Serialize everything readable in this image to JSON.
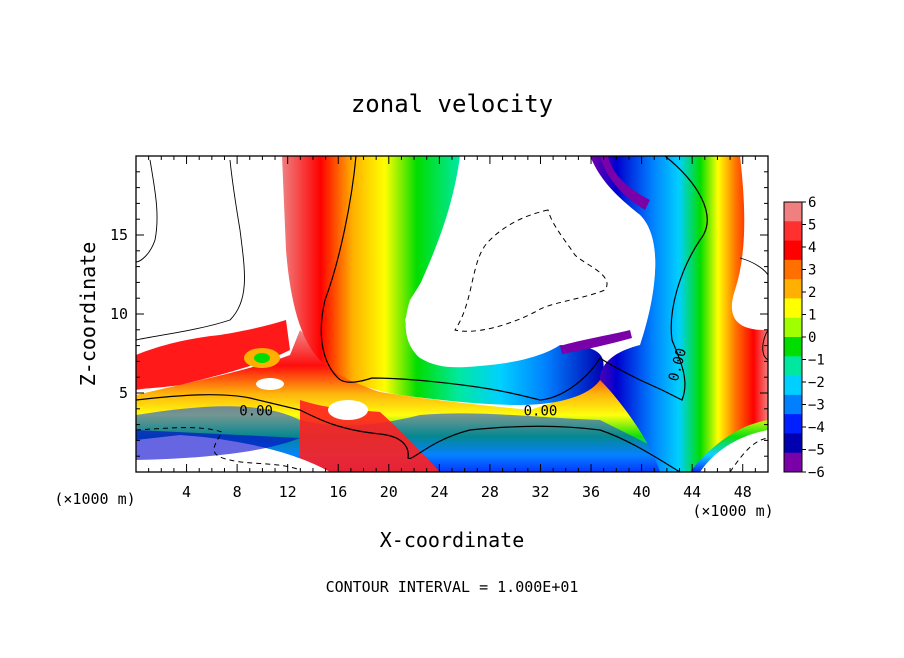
{
  "chart_data": {
    "type": "heatmap",
    "title": "zonal velocity",
    "xlabel": "X-coordinate",
    "ylabel": "Z-coordinate",
    "x_unit_note": "(×1000 m)",
    "z_unit_note": "(×1000 m)",
    "xlim": [
      0,
      50
    ],
    "ylim": [
      0,
      20
    ],
    "x_ticks": [
      4,
      8,
      12,
      16,
      20,
      24,
      28,
      32,
      36,
      40,
      44,
      48
    ],
    "y_ticks": [
      5,
      10,
      15
    ],
    "footer": "CONTOUR INTERVAL = 1.000E+01",
    "colorbar": {
      "min": -6,
      "max": 6,
      "tick_labels": [
        "6",
        "5",
        "4",
        "3",
        "2",
        "1",
        "0",
        "−1",
        "−2",
        "−3",
        "−4",
        "−5",
        "−6"
      ],
      "colors": [
        "#f08080",
        "#ff3030",
        "#ff0000",
        "#ff7000",
        "#ffb000",
        "#ffff00",
        "#a0ff00",
        "#00dd00",
        "#00e8a0",
        "#00d0ff",
        "#0080ff",
        "#0020ff",
        "#0000b0",
        "#7a00a8"
      ]
    },
    "contour_labels": [
      {
        "text": "0.00",
        "x": 9.5,
        "z": 3.9
      },
      {
        "text": "0.00",
        "x": 32.0,
        "z": 3.9
      },
      {
        "text": "0.00",
        "x": 42.8,
        "z": 6.8
      }
    ]
  }
}
